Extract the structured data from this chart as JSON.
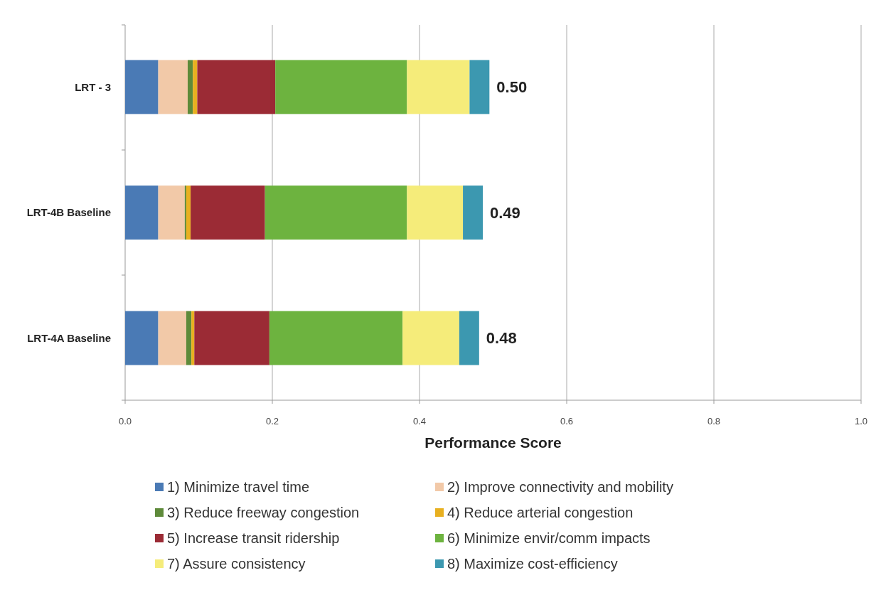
{
  "chart_data": {
    "type": "bar",
    "orientation": "horizontal",
    "stacked": true,
    "categories": [
      "LRT - 3",
      "LRT-4B Baseline",
      "LRT-4A Baseline"
    ],
    "series": [
      {
        "name": "1) Minimize travel time",
        "color": "#4a7ab5",
        "values": [
          0.045,
          0.045,
          0.045
        ]
      },
      {
        "name": "2) Improve connectivity and mobility",
        "color": "#f2c9a8",
        "values": [
          0.04,
          0.036,
          0.038
        ]
      },
      {
        "name": "3) Reduce freeway congestion",
        "color": "#5e8a3a",
        "values": [
          0.007,
          0.002,
          0.007
        ]
      },
      {
        "name": "4) Reduce arterial congestion",
        "color": "#e8b020",
        "values": [
          0.006,
          0.006,
          0.004
        ]
      },
      {
        "name": "5) Increase transit ridership",
        "color": "#9b2b35",
        "values": [
          0.106,
          0.101,
          0.102
        ]
      },
      {
        "name": "6) Minimize envir/comm impacts",
        "color": "#6db33f",
        "values": [
          0.179,
          0.193,
          0.181
        ]
      },
      {
        "name": "7) Assure consistency",
        "color": "#f5ec7a",
        "values": [
          0.085,
          0.076,
          0.077
        ]
      },
      {
        "name": "8) Maximize cost-efficiency",
        "color": "#3c98b0",
        "values": [
          0.027,
          0.027,
          0.027
        ]
      }
    ],
    "totals": [
      "0.50",
      "0.49",
      "0.48"
    ],
    "xlabel": "Performance Score",
    "xlim": [
      0,
      1
    ],
    "xticks": [
      {
        "value": 0,
        "label": "0.0"
      },
      {
        "value": 0.2,
        "label": "0.2"
      },
      {
        "value": 0.4,
        "label": "0.4"
      },
      {
        "value": 0.6,
        "label": "0.6"
      },
      {
        "value": 0.8,
        "label": "0.8"
      },
      {
        "value": 1,
        "label": "1.0"
      }
    ],
    "grid": "x",
    "legend": "bottom"
  }
}
